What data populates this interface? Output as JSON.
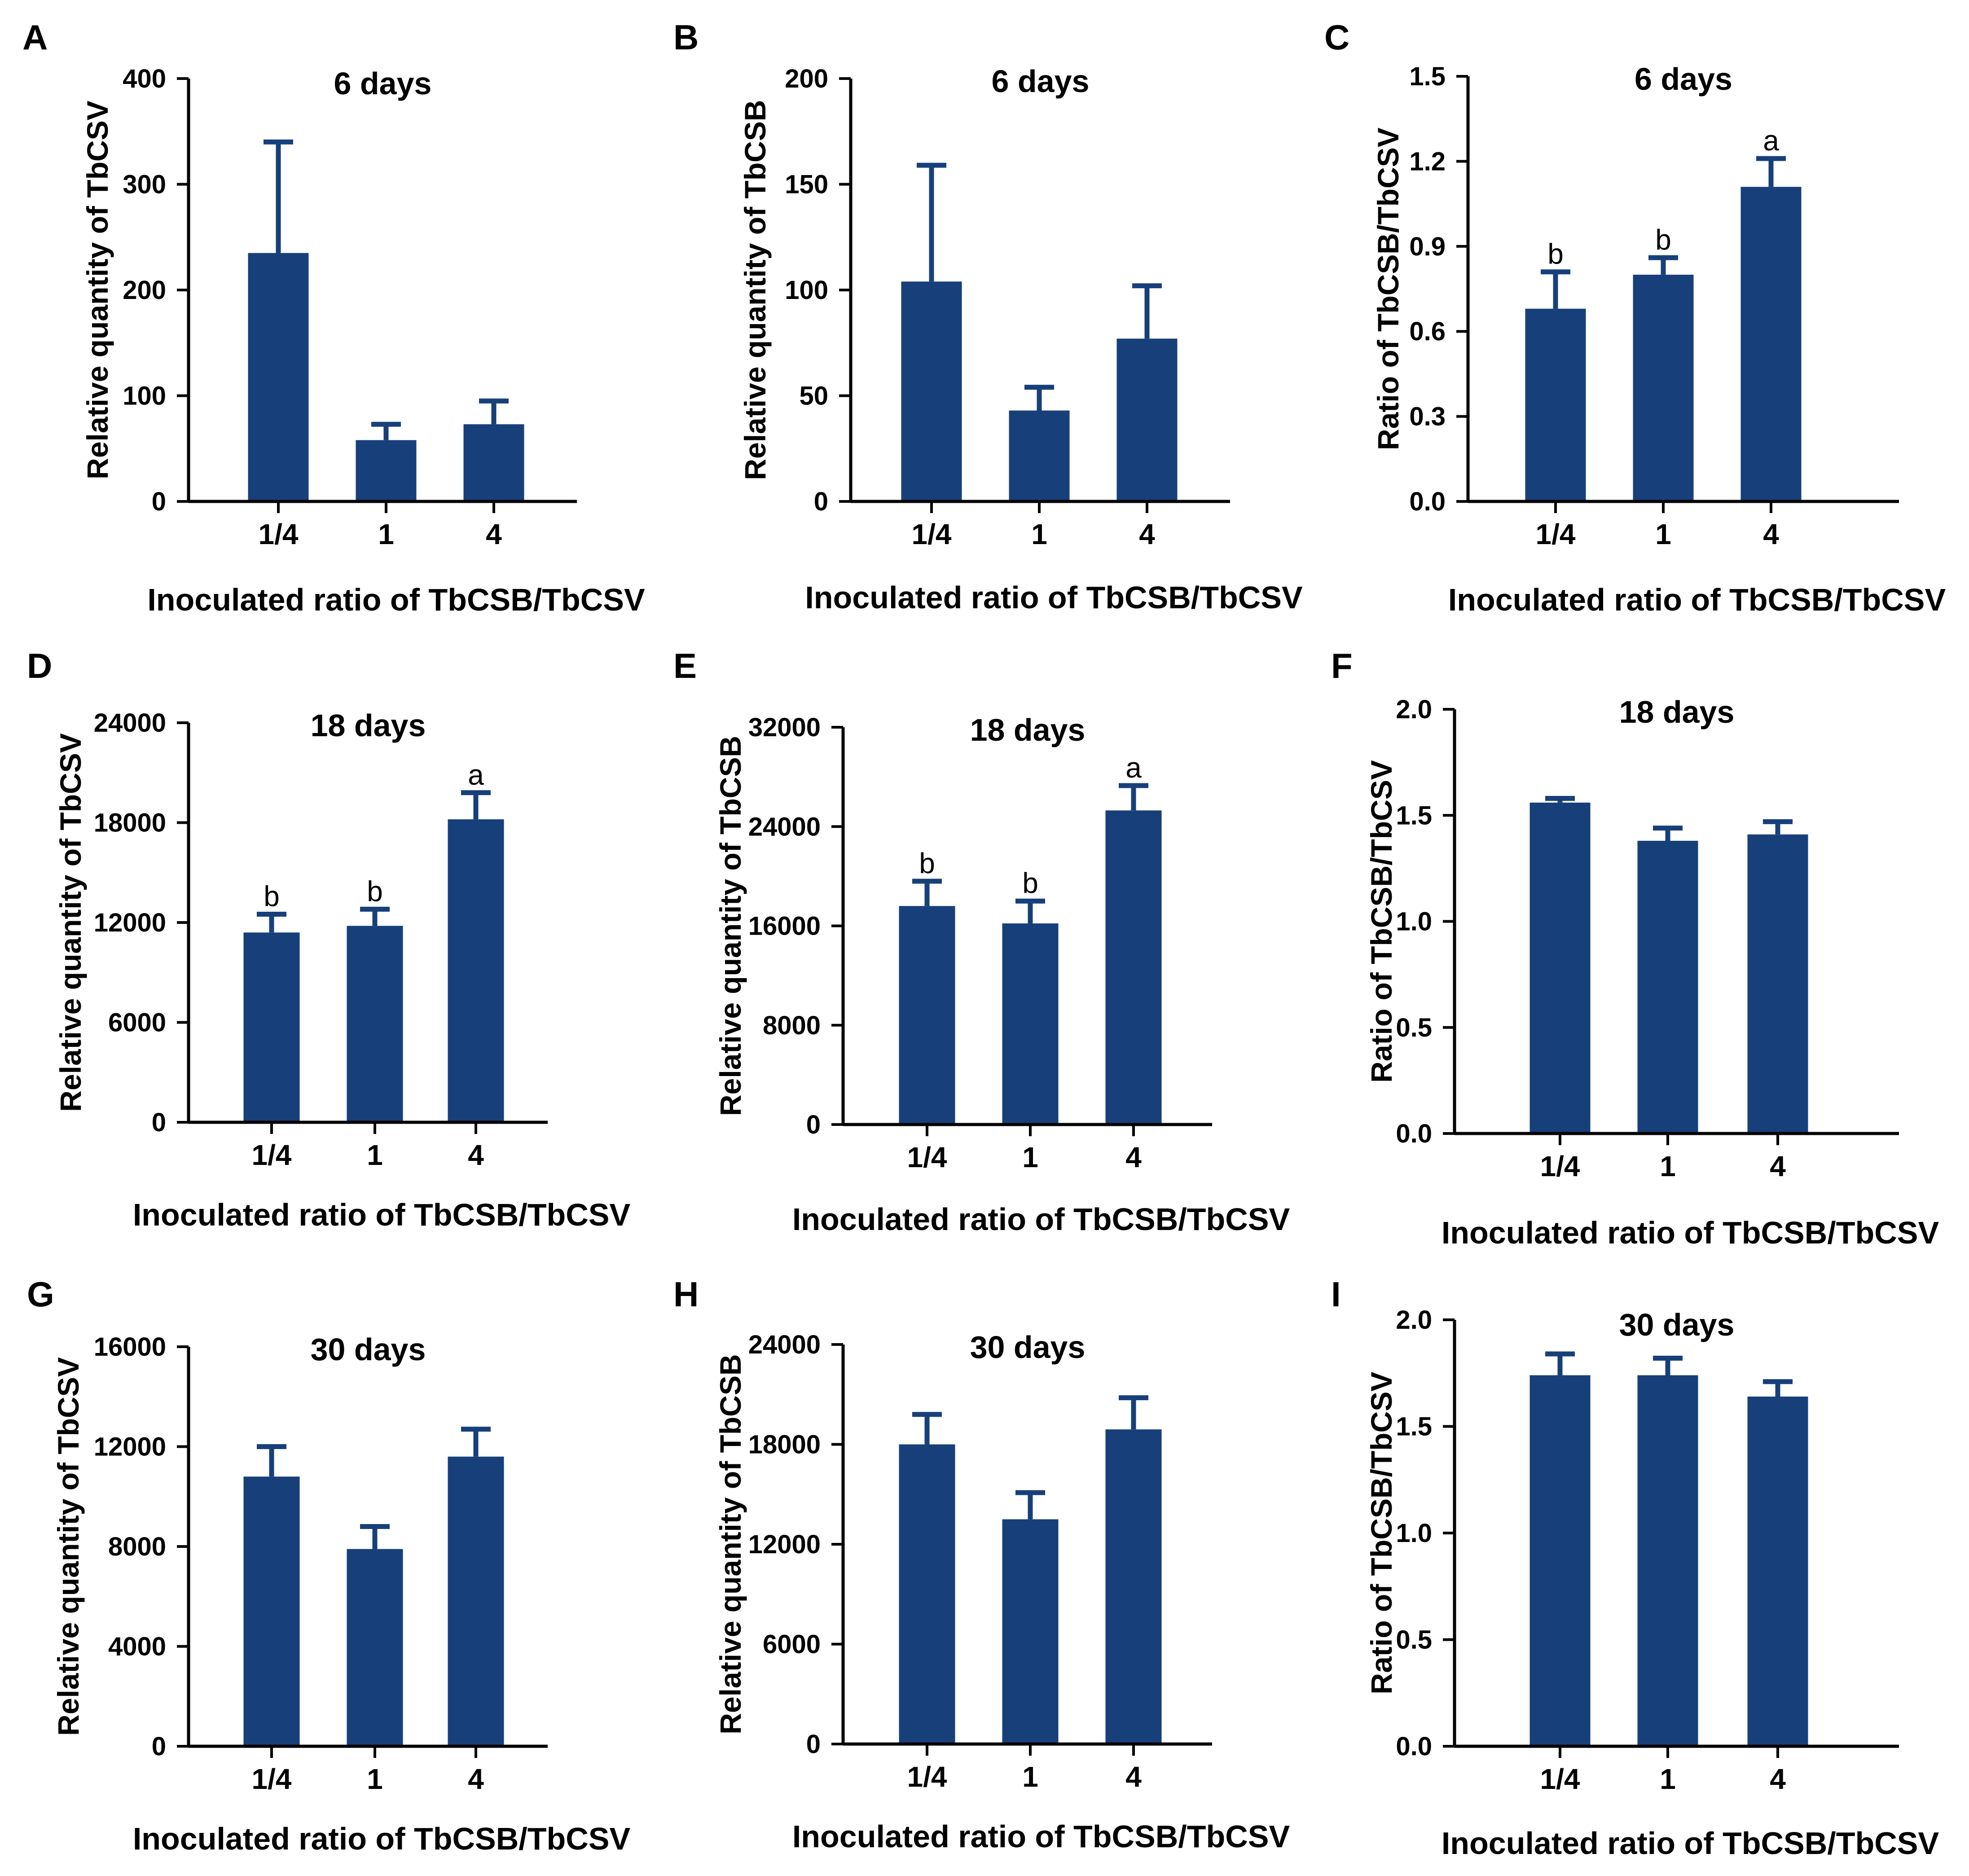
{
  "colors": {
    "bar": "#17407a",
    "axis": "#000000",
    "text": "#000000"
  },
  "chart_data": [
    {
      "panel": "A",
      "type": "bar",
      "title": "6 days",
      "ylabel": "Relative quantity of TbCSV",
      "xlabel": "Inoculated ratio of TbCSB/TbCSV",
      "categories": [
        "1/4",
        "1",
        "4"
      ],
      "values": [
        235,
        58,
        73
      ],
      "errors": [
        105,
        15,
        22
      ],
      "ylim": [
        0,
        400
      ],
      "yticks": [
        "0",
        "100",
        "200",
        "300",
        "400"
      ],
      "sig": [
        "",
        "",
        ""
      ]
    },
    {
      "panel": "B",
      "type": "bar",
      "title": "6 days",
      "ylabel": "Relative quantity of TbCSB",
      "xlabel": "Inoculated ratio of TbCSB/TbCSV",
      "categories": [
        "1/4",
        "1",
        "4"
      ],
      "values": [
        104,
        43,
        77
      ],
      "errors": [
        55,
        11,
        25
      ],
      "ylim": [
        0,
        200
      ],
      "yticks": [
        "0",
        "50",
        "100",
        "150",
        "200"
      ],
      "sig": [
        "",
        "",
        ""
      ]
    },
    {
      "panel": "C",
      "type": "bar",
      "title": "6 days",
      "ylabel": "Ratio of TbCSB/TbCSV",
      "xlabel": "Inoculated ratio of TbCSB/TbCSV",
      "categories": [
        "1/4",
        "1",
        "4"
      ],
      "values": [
        0.68,
        0.8,
        1.11
      ],
      "errors": [
        0.13,
        0.06,
        0.1
      ],
      "ylim": [
        0,
        1.5
      ],
      "yticks": [
        "0.0",
        "0.3",
        "0.6",
        "0.9",
        "1.2",
        "1.5"
      ],
      "sig": [
        "b",
        "b",
        "a"
      ]
    },
    {
      "panel": "D",
      "type": "bar",
      "title": "18 days",
      "ylabel": "Relative quantity of TbCSV",
      "xlabel": "Inoculated ratio of TbCSB/TbCSV",
      "categories": [
        "1/4",
        "1",
        "4"
      ],
      "values": [
        11400,
        11800,
        18200
      ],
      "errors": [
        1100,
        1000,
        1600
      ],
      "ylim": [
        0,
        24000
      ],
      "yticks": [
        "0",
        "6000",
        "12000",
        "18000",
        "24000"
      ],
      "sig": [
        "b",
        "b",
        "a"
      ]
    },
    {
      "panel": "E",
      "type": "bar",
      "title": "18 days",
      "ylabel": "Relative quantity of TbCSB",
      "xlabel": "Inoculated ratio of TbCSB/TbCSV",
      "categories": [
        "1/4",
        "1",
        "4"
      ],
      "values": [
        17600,
        16200,
        25300
      ],
      "errors": [
        2000,
        1800,
        2000
      ],
      "ylim": [
        0,
        32000
      ],
      "yticks": [
        "0",
        "8000",
        "16000",
        "24000",
        "32000"
      ],
      "sig": [
        "b",
        "b",
        "a"
      ]
    },
    {
      "panel": "F",
      "type": "bar",
      "title": "18 days",
      "ylabel": "Ratio of TbCSB/TbCSV",
      "xlabel": "Inoculated ratio of TbCSB/TbCSV",
      "categories": [
        "1/4",
        "1",
        "4"
      ],
      "values": [
        1.56,
        1.38,
        1.41
      ],
      "errors": [
        0.02,
        0.06,
        0.06
      ],
      "ylim": [
        0,
        2.0
      ],
      "yticks": [
        "0.0",
        "0.5",
        "1.0",
        "1.5",
        "2.0"
      ],
      "sig": [
        "",
        "",
        ""
      ]
    },
    {
      "panel": "G",
      "type": "bar",
      "title": "30 days",
      "ylabel": "Relative quantity of TbCSV",
      "xlabel": "Inoculated ratio of TbCSB/TbCSV",
      "categories": [
        "1/4",
        "1",
        "4"
      ],
      "values": [
        10800,
        7900,
        11600
      ],
      "errors": [
        1200,
        900,
        1100
      ],
      "ylim": [
        0,
        16000
      ],
      "yticks": [
        "0",
        "4000",
        "8000",
        "12000",
        "16000"
      ],
      "sig": [
        "",
        "",
        ""
      ]
    },
    {
      "panel": "H",
      "type": "bar",
      "title": "30 days",
      "ylabel": "Relative quantity of TbCSB",
      "xlabel": "Inoculated ratio of TbCSB/TbCSV",
      "categories": [
        "1/4",
        "1",
        "4"
      ],
      "values": [
        18000,
        13500,
        18900
      ],
      "errors": [
        1800,
        1600,
        1900
      ],
      "ylim": [
        0,
        24000
      ],
      "yticks": [
        "0",
        "6000",
        "12000",
        "18000",
        "24000"
      ],
      "sig": [
        "",
        "",
        ""
      ]
    },
    {
      "panel": "I",
      "type": "bar",
      "title": "30 days",
      "ylabel": "Ratio of TbCSB/TbCSV",
      "xlabel": "Inoculated ratio of TbCSB/TbCSV",
      "categories": [
        "1/4",
        "1",
        "4"
      ],
      "values": [
        1.74,
        1.74,
        1.64
      ],
      "errors": [
        0.1,
        0.08,
        0.07
      ],
      "ylim": [
        0,
        2.0
      ],
      "yticks": [
        "0.0",
        "0.5",
        "1.0",
        "1.5",
        "2.0"
      ],
      "sig": [
        "",
        "",
        ""
      ]
    }
  ]
}
